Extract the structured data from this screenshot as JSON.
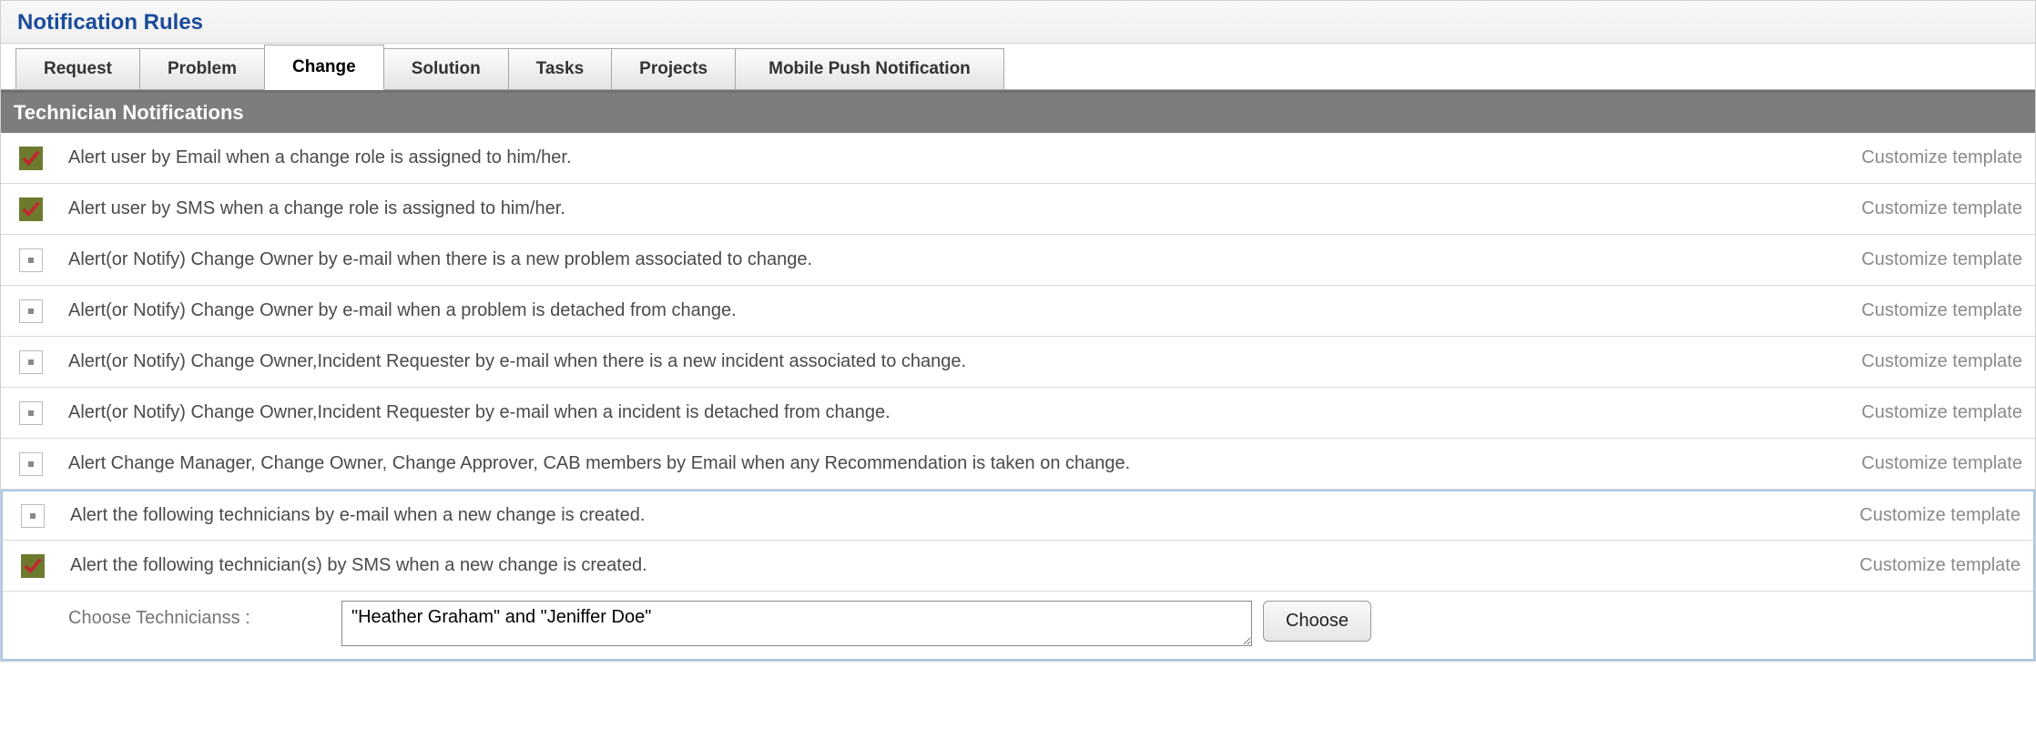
{
  "title": "Notification Rules",
  "tabs": [
    {
      "label": "Request",
      "active": false
    },
    {
      "label": "Problem",
      "active": false
    },
    {
      "label": "Change",
      "active": true
    },
    {
      "label": "Solution",
      "active": false
    },
    {
      "label": "Tasks",
      "active": false
    },
    {
      "label": "Projects",
      "active": false
    },
    {
      "label": "Mobile Push Notification",
      "active": false
    }
  ],
  "sectionHeader": "Technician Notifications",
  "customizeLabel": "Customize template",
  "rules": [
    {
      "checked": true,
      "text": "Alert user by Email when a change role is assigned to him/her."
    },
    {
      "checked": true,
      "text": "Alert user by SMS when a change role is assigned to him/her."
    },
    {
      "checked": false,
      "text": "Alert(or Notify) Change Owner by e-mail when there is a new problem associated to change."
    },
    {
      "checked": false,
      "text": "Alert(or Notify) Change Owner by e-mail when a problem is detached from change."
    },
    {
      "checked": false,
      "text": "Alert(or Notify) Change Owner,Incident Requester by e-mail when there is a new incident associated to change."
    },
    {
      "checked": false,
      "text": "Alert(or Notify) Change Owner,Incident Requester by e-mail when a incident is detached from change."
    },
    {
      "checked": false,
      "text": "Alert Change Manager, Change Owner, Change Approver, CAB members by Email when any Recommendation is taken on change."
    },
    {
      "checked": false,
      "text": "Alert the following technicians by e-mail when a new change is created.",
      "highlightTop": true
    },
    {
      "checked": true,
      "text": "Alert the following technician(s) by SMS when a new change is created."
    }
  ],
  "choose": {
    "label": "Choose Technicianss :",
    "value": "\"Heather Graham\" and \"Jeniffer Doe\"",
    "button": "Choose"
  },
  "colors": {
    "titleColor": "#1a4b9b",
    "sectionBg": "#7d7d7d",
    "highlightBorder": "#a7c7e7",
    "checkedBg": "#6d7a2e",
    "checkMark": "#c0272d"
  }
}
